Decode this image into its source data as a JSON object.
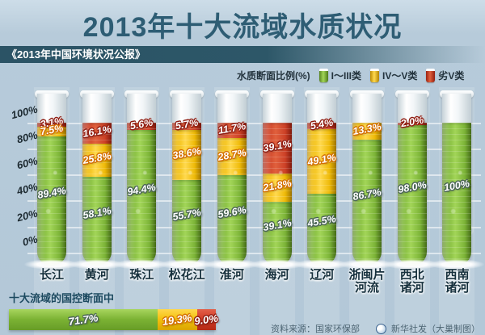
{
  "page": {
    "title": "2013年十大流域水质状况",
    "subtitle": "《2013年中国环境状况公报》"
  },
  "legend": {
    "label": "水质断面比例(%)",
    "items": [
      {
        "name": "I～III类",
        "key": "green",
        "color": "#7cb437"
      },
      {
        "name": "IV～V类",
        "key": "yellow",
        "color": "#f0bb07"
      },
      {
        "name": "劣V类",
        "key": "red",
        "color": "#cc4026"
      }
    ]
  },
  "chart_data": {
    "type": "bar",
    "stacked": true,
    "unit": "%",
    "title": "2013年十大流域水质状况",
    "ylim": [
      0,
      100
    ],
    "yticks": [
      "100%",
      "80%",
      "60%",
      "40%",
      "20%",
      "0%"
    ],
    "grid": true,
    "legend_position": "top-right",
    "categories": [
      "长江",
      "黄河",
      "珠江",
      "松花江",
      "淮河",
      "海河",
      "辽河",
      "浙闽片河流",
      "西北诸河",
      "西南诸河"
    ],
    "category_lines": [
      [
        "长江"
      ],
      [
        "黄河"
      ],
      [
        "珠江"
      ],
      [
        "松花江"
      ],
      [
        "淮河"
      ],
      [
        "海河"
      ],
      [
        "辽河"
      ],
      [
        "浙闽片",
        "河流"
      ],
      [
        "西北",
        "诸河"
      ],
      [
        "西南",
        "诸河"
      ]
    ],
    "series": [
      {
        "name": "I～III类",
        "key": "green",
        "color": "#7cb437",
        "values": [
          89.4,
          58.1,
          94.4,
          55.7,
          59.6,
          39.1,
          45.5,
          86.7,
          98.0,
          100
        ]
      },
      {
        "name": "IV～V类",
        "key": "yellow",
        "color": "#f0bb07",
        "values": [
          7.5,
          25.8,
          0,
          38.6,
          28.7,
          21.8,
          49.1,
          13.3,
          0,
          0
        ]
      },
      {
        "name": "劣V类",
        "key": "red",
        "color": "#cc4026",
        "values": [
          3.1,
          16.1,
          5.6,
          5.7,
          11.7,
          39.1,
          5.4,
          0,
          2.0,
          0
        ]
      }
    ]
  },
  "summary": {
    "heading": "十大流域的国控断面中",
    "segments": [
      {
        "key": "green",
        "value": 71.7,
        "label": "71.7%"
      },
      {
        "key": "yellow",
        "value": 19.3,
        "label": "19.3%"
      },
      {
        "key": "red",
        "value": 9.0,
        "label": "9.0%"
      }
    ]
  },
  "footer": {
    "source": "资料来源：国家环保部",
    "credit": "新华社发（大巢制图）"
  }
}
